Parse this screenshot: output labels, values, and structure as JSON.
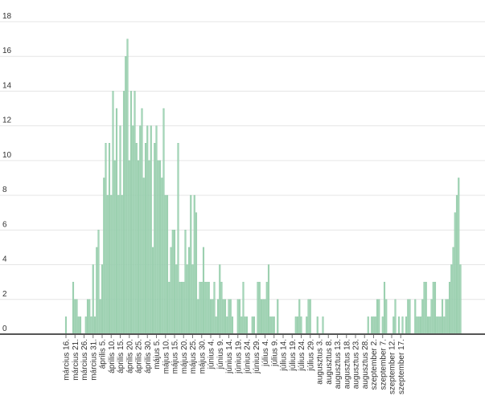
{
  "chart_data": {
    "type": "bar",
    "title": "",
    "xlabel": "",
    "ylabel": "",
    "ylim": [
      0,
      18
    ],
    "yticks": [
      0,
      2,
      4,
      6,
      8,
      10,
      12,
      14,
      16,
      18
    ],
    "grid": true,
    "colors": {
      "bar": "#a5d6b9",
      "bar_edge": "#8cc7a3",
      "grid": "#e6e6e6",
      "axis": "#555555"
    },
    "x_tick_labels": [
      "március 16.",
      "március 21.",
      "március 26.",
      "március 31.",
      "április 5.",
      "április 10.",
      "április 15.",
      "április 20.",
      "április 25.",
      "április 30.",
      "május 5.",
      "május 10.",
      "május 15.",
      "május 20.",
      "május 25.",
      "május 30.",
      "június 4.",
      "június 9.",
      "június 14.",
      "június 19.",
      "június 24.",
      "június 29.",
      "július 4.",
      "július 9.",
      "július 14.",
      "július 19.",
      "július 24.",
      "július 29.",
      "augusztus 3.",
      "augusztus 8.",
      "augusztus 13.",
      "augusztus 18.",
      "augusztus 23.",
      "augusztus 28.",
      "szeptember 2.",
      "szeptember 7.",
      "szeptember 12.",
      "szeptember 17."
    ],
    "start_date_label": "március 16.",
    "values": [
      1,
      0,
      0,
      0,
      3,
      2,
      2,
      1,
      1,
      0,
      0,
      1,
      2,
      2,
      1,
      4,
      1,
      5,
      6,
      2,
      4,
      9,
      11,
      8,
      11,
      8,
      14,
      10,
      13,
      8,
      12,
      8,
      14,
      16,
      17,
      10,
      14,
      12,
      14,
      11,
      10,
      12,
      13,
      9,
      11,
      12,
      10,
      12,
      5,
      11,
      12,
      10,
      10,
      9,
      13,
      8,
      8,
      3,
      5,
      6,
      6,
      4,
      11,
      3,
      3,
      3,
      6,
      4,
      5,
      8,
      4,
      8,
      7,
      2,
      3,
      3,
      5,
      3,
      3,
      3,
      2,
      2,
      3,
      1,
      2,
      4,
      3,
      2,
      2,
      1,
      2,
      2,
      1,
      0,
      0,
      2,
      2,
      1,
      3,
      1,
      1,
      0,
      0,
      1,
      1,
      0,
      3,
      3,
      2,
      2,
      2,
      3,
      4,
      1,
      1,
      1,
      0,
      2,
      0,
      0,
      0,
      0,
      0,
      0,
      0,
      0,
      0,
      1,
      1,
      2,
      1,
      0,
      0,
      1,
      2,
      2,
      0,
      0,
      0,
      1,
      0,
      0,
      1,
      0,
      0,
      0,
      0,
      0,
      0,
      0,
      0,
      0,
      0,
      0,
      0,
      0,
      0,
      0,
      0,
      0,
      0,
      0,
      0,
      0,
      0,
      0,
      0,
      1,
      0,
      1,
      1,
      1,
      2,
      2,
      0,
      1,
      3,
      2,
      0,
      0,
      0,
      1,
      2,
      0,
      1,
      0,
      1,
      0,
      1,
      2,
      2,
      0,
      0,
      2,
      1,
      1,
      1,
      2,
      3,
      3,
      1,
      1,
      2,
      3,
      3,
      1,
      1,
      1,
      2,
      1,
      2,
      2,
      3,
      4,
      5,
      7,
      8,
      9,
      4
    ]
  }
}
